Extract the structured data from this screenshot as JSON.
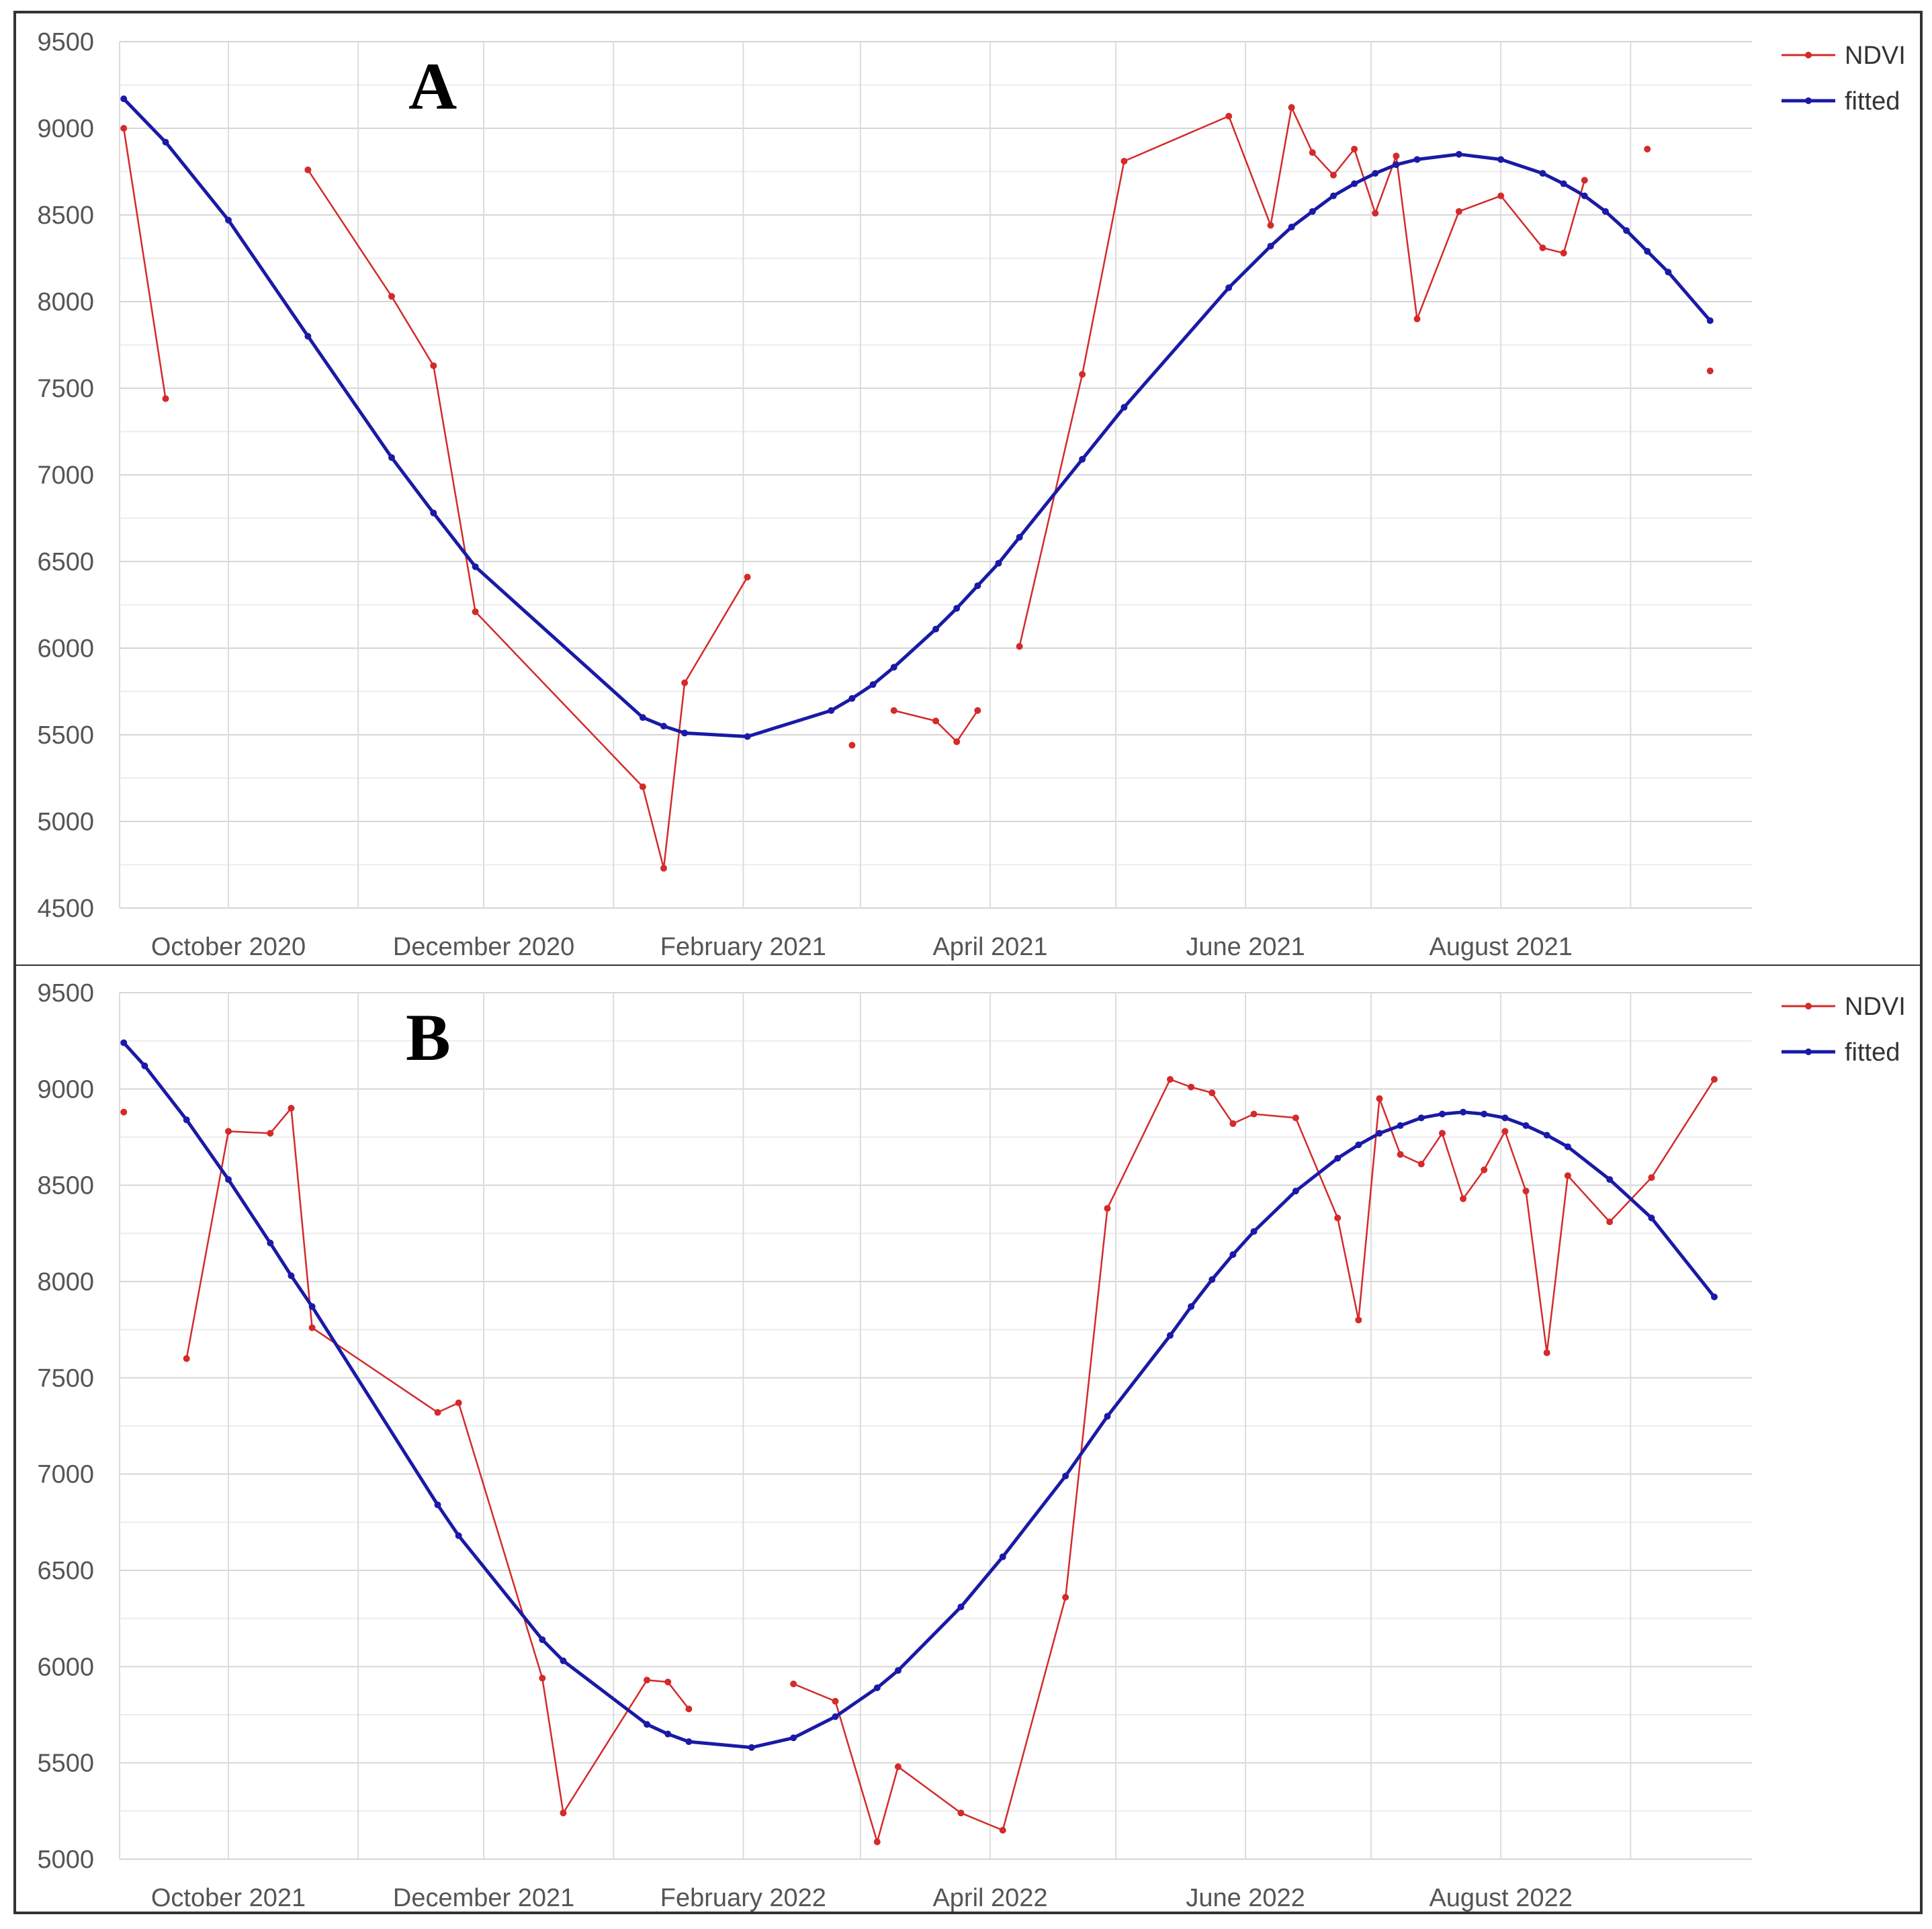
{
  "colors": {
    "ndvi": "#d42a2a",
    "fitted": "#1a1aa6",
    "grid": "#dddddd",
    "frame": "#333333"
  },
  "chart_data": [
    {
      "type": "line",
      "panel_label": "A",
      "legend": [
        "NDVI",
        "fitted"
      ],
      "legend_position": "top-right",
      "grid": true,
      "ylim": [
        4500,
        9500
      ],
      "yticks": [
        4500,
        5000,
        5500,
        6000,
        6500,
        7000,
        7500,
        8000,
        8500,
        9000,
        9500
      ],
      "xlim": [
        "2020-09-05",
        "2021-09-30"
      ],
      "xticks": [
        {
          "date": "2020-10-01",
          "label": "October 2020"
        },
        {
          "date": "2020-12-01",
          "label": "December 2020"
        },
        {
          "date": "2021-02-01",
          "label": "February 2021"
        },
        {
          "date": "2021-04-01",
          "label": "April 2021"
        },
        {
          "date": "2021-06-01",
          "label": "June 2021"
        },
        {
          "date": "2021-08-01",
          "label": "August 2021"
        }
      ],
      "series": [
        {
          "name": "NDVI",
          "segments": [
            [
              [
                "2020-09-06",
                9000
              ],
              [
                "2020-09-16",
                7440
              ]
            ],
            [
              [
                "2020-10-20",
                8760
              ],
              [
                "2020-11-09",
                8030
              ],
              [
                "2020-11-19",
                7630
              ],
              [
                "2020-11-29",
                6210
              ],
              [
                "2021-01-08",
                5200
              ],
              [
                "2021-01-13",
                4730
              ],
              [
                "2021-01-18",
                5800
              ],
              [
                "2021-02-02",
                6410
              ]
            ],
            [
              [
                "2021-02-27",
                5440
              ]
            ],
            [
              [
                "2021-03-09",
                5640
              ],
              [
                "2021-03-19",
                5580
              ],
              [
                "2021-03-24",
                5460
              ],
              [
                "2021-03-29",
                5640
              ]
            ],
            [
              [
                "2021-04-08",
                6010
              ],
              [
                "2021-04-23",
                7580
              ],
              [
                "2021-05-03",
                8810
              ],
              [
                "2021-05-28",
                9070
              ],
              [
                "2021-06-07",
                8440
              ],
              [
                "2021-06-12",
                9120
              ],
              [
                "2021-06-17",
                8860
              ],
              [
                "2021-06-22",
                8730
              ],
              [
                "2021-06-27",
                8880
              ],
              [
                "2021-07-02",
                8510
              ],
              [
                "2021-07-07",
                8840
              ],
              [
                "2021-07-12",
                7900
              ],
              [
                "2021-07-22",
                8520
              ],
              [
                "2021-08-01",
                8610
              ],
              [
                "2021-08-11",
                8310
              ],
              [
                "2021-08-16",
                8280
              ],
              [
                "2021-08-21",
                8700
              ]
            ],
            [
              [
                "2021-09-05",
                8880
              ]
            ],
            [
              [
                "2021-09-20",
                7600
              ]
            ]
          ]
        },
        {
          "name": "fitted",
          "points": [
            [
              "2020-09-06",
              9170
            ],
            [
              "2020-09-16",
              8920
            ],
            [
              "2020-10-01",
              8470
            ],
            [
              "2020-10-20",
              7800
            ],
            [
              "2020-11-09",
              7100
            ],
            [
              "2020-11-19",
              6780
            ],
            [
              "2020-11-29",
              6470
            ],
            [
              "2021-01-08",
              5600
            ],
            [
              "2021-01-13",
              5550
            ],
            [
              "2021-01-18",
              5510
            ],
            [
              "2021-02-02",
              5490
            ],
            [
              "2021-02-22",
              5640
            ],
            [
              "2021-02-27",
              5710
            ],
            [
              "2021-03-04",
              5790
            ],
            [
              "2021-03-09",
              5890
            ],
            [
              "2021-03-19",
              6110
            ],
            [
              "2021-03-24",
              6230
            ],
            [
              "2021-03-29",
              6360
            ],
            [
              "2021-04-03",
              6490
            ],
            [
              "2021-04-08",
              6640
            ],
            [
              "2021-04-23",
              7090
            ],
            [
              "2021-05-03",
              7390
            ],
            [
              "2021-05-28",
              8080
            ],
            [
              "2021-06-07",
              8320
            ],
            [
              "2021-06-12",
              8430
            ],
            [
              "2021-06-17",
              8520
            ],
            [
              "2021-06-22",
              8610
            ],
            [
              "2021-06-27",
              8680
            ],
            [
              "2021-07-02",
              8740
            ],
            [
              "2021-07-07",
              8790
            ],
            [
              "2021-07-12",
              8820
            ],
            [
              "2021-07-22",
              8850
            ],
            [
              "2021-08-01",
              8820
            ],
            [
              "2021-08-11",
              8740
            ],
            [
              "2021-08-16",
              8680
            ],
            [
              "2021-08-21",
              8610
            ],
            [
              "2021-08-26",
              8520
            ],
            [
              "2021-08-31",
              8410
            ],
            [
              "2021-09-05",
              8290
            ],
            [
              "2021-09-10",
              8170
            ],
            [
              "2021-09-20",
              7890
            ]
          ]
        }
      ]
    },
    {
      "type": "line",
      "panel_label": "B",
      "legend": [
        "NDVI",
        "fitted"
      ],
      "legend_position": "top-right",
      "grid": true,
      "ylim": [
        5000,
        9500
      ],
      "yticks": [
        5000,
        5500,
        6000,
        6500,
        7000,
        7500,
        8000,
        8500,
        9000,
        9500
      ],
      "xlim": [
        "2021-09-05",
        "2022-09-30"
      ],
      "xticks": [
        {
          "date": "2021-10-01",
          "label": "October 2021"
        },
        {
          "date": "2021-12-01",
          "label": "December 2021"
        },
        {
          "date": "2022-02-01",
          "label": "February 2022"
        },
        {
          "date": "2022-04-01",
          "label": "April 2022"
        },
        {
          "date": "2022-06-01",
          "label": "June 2022"
        },
        {
          "date": "2022-08-01",
          "label": "August 2022"
        }
      ],
      "series": [
        {
          "name": "NDVI",
          "segments": [
            [
              [
                "2021-09-06",
                8880
              ]
            ],
            [
              [
                "2021-09-21",
                7600
              ],
              [
                "2021-10-01",
                8780
              ],
              [
                "2021-10-11",
                8770
              ],
              [
                "2021-10-16",
                8900
              ],
              [
                "2021-10-21",
                7760
              ],
              [
                "2021-11-20",
                7320
              ],
              [
                "2021-11-25",
                7370
              ],
              [
                "2021-12-15",
                5940
              ],
              [
                "2021-12-20",
                5240
              ],
              [
                "2022-01-09",
                5930
              ],
              [
                "2022-01-14",
                5920
              ],
              [
                "2022-01-19",
                5780
              ]
            ],
            [
              [
                "2022-02-13",
                5910
              ],
              [
                "2022-02-23",
                5820
              ],
              [
                "2022-03-05",
                5090
              ],
              [
                "2022-03-10",
                5480
              ],
              [
                "2022-03-25",
                5240
              ],
              [
                "2022-04-04",
                5150
              ],
              [
                "2022-04-19",
                6360
              ],
              [
                "2022-04-29",
                8380
              ],
              [
                "2022-05-14",
                9050
              ],
              [
                "2022-05-19",
                9010
              ],
              [
                "2022-05-24",
                8980
              ],
              [
                "2022-05-29",
                8820
              ],
              [
                "2022-06-03",
                8870
              ],
              [
                "2022-06-13",
                8850
              ],
              [
                "2022-06-23",
                8330
              ],
              [
                "2022-06-28",
                7800
              ],
              [
                "2022-07-03",
                8950
              ],
              [
                "2022-07-08",
                8660
              ],
              [
                "2022-07-13",
                8610
              ],
              [
                "2022-07-18",
                8770
              ],
              [
                "2022-07-23",
                8430
              ],
              [
                "2022-07-28",
                8580
              ],
              [
                "2022-08-02",
                8780
              ],
              [
                "2022-08-07",
                8470
              ],
              [
                "2022-08-12",
                7630
              ],
              [
                "2022-08-17",
                8550
              ],
              [
                "2022-08-27",
                8310
              ],
              [
                "2022-09-06",
                8540
              ],
              [
                "2022-09-21",
                9050
              ]
            ]
          ]
        },
        {
          "name": "fitted",
          "points": [
            [
              "2021-09-06",
              9240
            ],
            [
              "2021-09-11",
              9120
            ],
            [
              "2021-09-21",
              8840
            ],
            [
              "2021-10-01",
              8530
            ],
            [
              "2021-10-11",
              8200
            ],
            [
              "2021-10-16",
              8030
            ],
            [
              "2021-10-21",
              7870
            ],
            [
              "2021-11-20",
              6840
            ],
            [
              "2021-11-25",
              6680
            ],
            [
              "2021-12-15",
              6140
            ],
            [
              "2021-12-20",
              6030
            ],
            [
              "2022-01-09",
              5700
            ],
            [
              "2022-01-14",
              5650
            ],
            [
              "2022-01-19",
              5610
            ],
            [
              "2022-02-03",
              5580
            ],
            [
              "2022-02-13",
              5630
            ],
            [
              "2022-02-23",
              5740
            ],
            [
              "2022-03-05",
              5890
            ],
            [
              "2022-03-10",
              5980
            ],
            [
              "2022-03-25",
              6310
            ],
            [
              "2022-04-04",
              6570
            ],
            [
              "2022-04-19",
              6990
            ],
            [
              "2022-04-29",
              7300
            ],
            [
              "2022-05-14",
              7720
            ],
            [
              "2022-05-19",
              7870
            ],
            [
              "2022-05-24",
              8010
            ],
            [
              "2022-05-29",
              8140
            ],
            [
              "2022-06-03",
              8260
            ],
            [
              "2022-06-13",
              8470
            ],
            [
              "2022-06-23",
              8640
            ],
            [
              "2022-06-28",
              8710
            ],
            [
              "2022-07-03",
              8770
            ],
            [
              "2022-07-08",
              8810
            ],
            [
              "2022-07-13",
              8850
            ],
            [
              "2022-07-18",
              8870
            ],
            [
              "2022-07-23",
              8880
            ],
            [
              "2022-07-28",
              8870
            ],
            [
              "2022-08-02",
              8850
            ],
            [
              "2022-08-07",
              8810
            ],
            [
              "2022-08-12",
              8760
            ],
            [
              "2022-08-17",
              8700
            ],
            [
              "2022-08-27",
              8530
            ],
            [
              "2022-09-06",
              8330
            ],
            [
              "2022-09-21",
              7920
            ]
          ]
        }
      ]
    }
  ]
}
